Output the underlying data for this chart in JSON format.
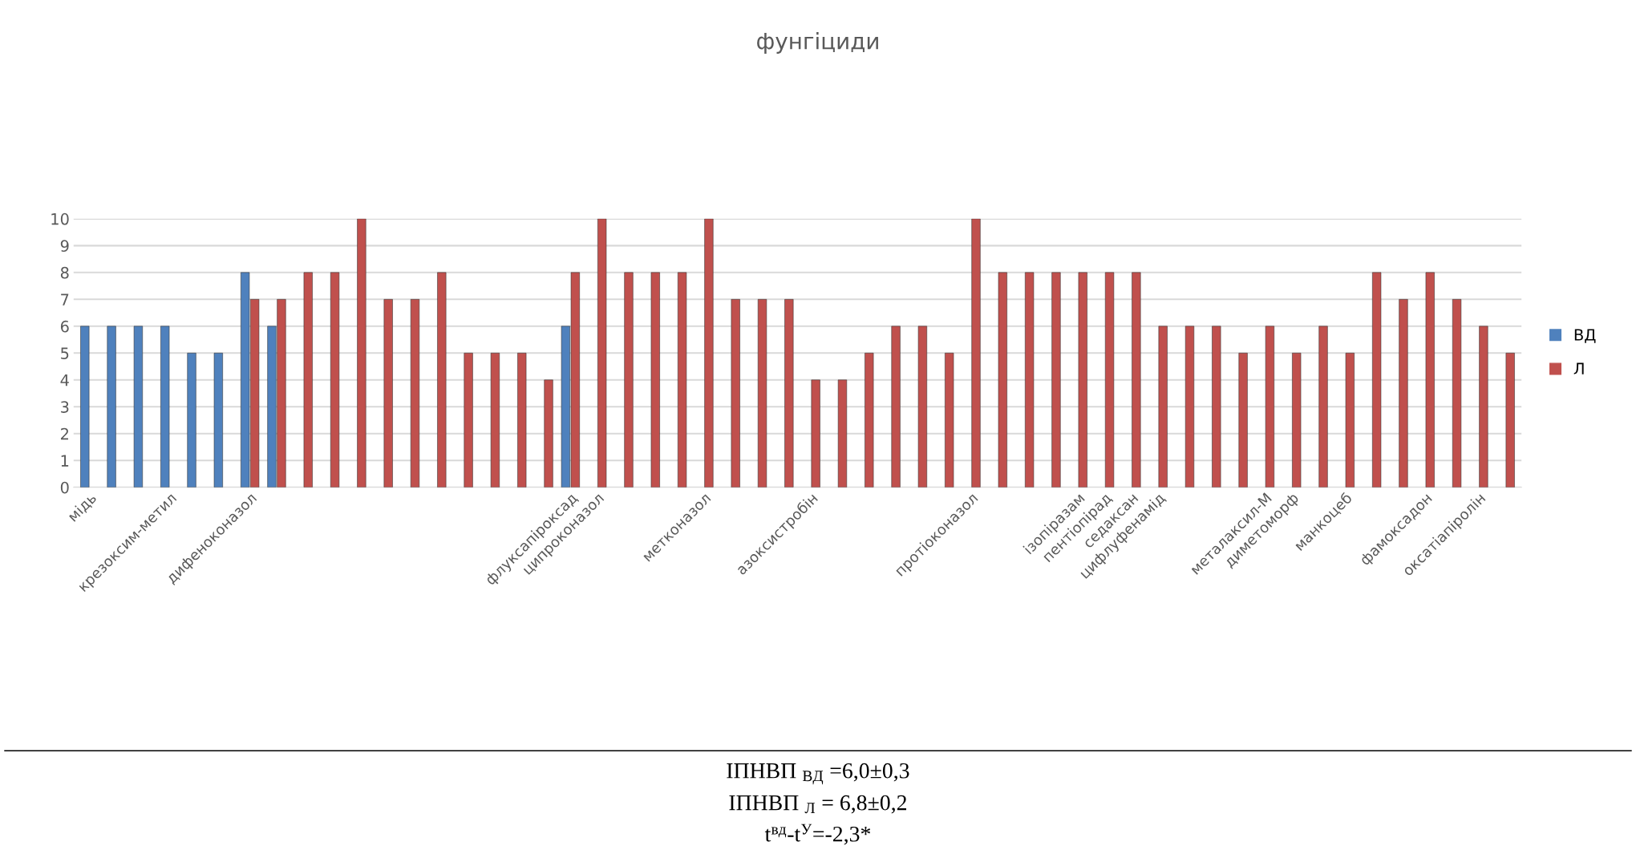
{
  "chart_data": {
    "type": "bar",
    "title": "фунгіциди",
    "categories": [
      "мідь",
      null,
      null,
      "крезоксим-метил",
      null,
      null,
      "дифеноконазол",
      null,
      null,
      null,
      null,
      null,
      null,
      null,
      null,
      null,
      null,
      null,
      "флуксапіроксад",
      "ципроконазол",
      null,
      null,
      null,
      "метконазол",
      null,
      null,
      null,
      "азоксистробін",
      null,
      null,
      null,
      null,
      null,
      "протіоконазол",
      null,
      null,
      null,
      "ізопіразам",
      "пентіопірад",
      "седаксан",
      "цифлуфенамід",
      null,
      null,
      null,
      "металаксил-М",
      "диметоморф",
      null,
      "манкоцеб",
      null,
      null,
      "фамоксадон",
      null,
      "оксатіапіролін",
      null
    ],
    "series": [
      {
        "name": "ВД",
        "color": "#4f81bd",
        "values": [
          6,
          6,
          6,
          6,
          5,
          5,
          8,
          6,
          null,
          null,
          null,
          null,
          null,
          null,
          null,
          null,
          null,
          null,
          6,
          null,
          null,
          null,
          null,
          null,
          null,
          null,
          null,
          null,
          null,
          null,
          null,
          null,
          null,
          null,
          null,
          null,
          null,
          null,
          null,
          null,
          null,
          null,
          null,
          null,
          null,
          null,
          null,
          null,
          null,
          null,
          null,
          null,
          null,
          null
        ]
      },
      {
        "name": "Л",
        "color": "#c0504d",
        "values": [
          null,
          null,
          null,
          null,
          null,
          null,
          7,
          7,
          8,
          8,
          10,
          7,
          7,
          8,
          5,
          5,
          5,
          4,
          8,
          10,
          8,
          8,
          8,
          10,
          7,
          7,
          7,
          4,
          4,
          5,
          6,
          6,
          5,
          10,
          8,
          8,
          8,
          8,
          8,
          8,
          6,
          6,
          6,
          5,
          6,
          5,
          6,
          5,
          8,
          7,
          8,
          7,
          6,
          5
        ]
      }
    ],
    "ylim": [
      0,
      10
    ],
    "yticks": [
      0,
      1,
      2,
      3,
      4,
      5,
      6,
      7,
      8,
      9,
      10
    ],
    "grid": "y",
    "legend": "right",
    "annotations": [
      "ІПНВП $_{ВД}$ =6,0±0,3",
      "ІПНВП $_{Л}$ = 6,8±0,2",
      "t$^{вд}$-t$^{У}$=-2,3*"
    ]
  }
}
